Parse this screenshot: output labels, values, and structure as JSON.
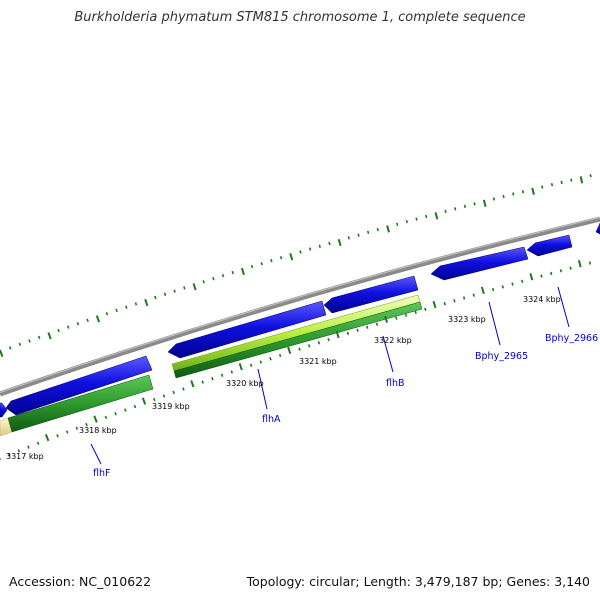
{
  "title": "Burkholderia phymatum STM815 chromosome 1, complete sequence",
  "footer": {
    "accession": "Accession: NC_010622",
    "topology": "Topology: circular; Length: 3,479,187 bp; Genes: 3,140"
  },
  "colors": {
    "background": "#ffffff",
    "backbone": "#8a8a8a",
    "cds_forward": "#1010e0",
    "gene_green": "#2e9a2e",
    "gene_lime": "#b8f040",
    "gene_khaki": "#efe5a4",
    "tick": "#1f7a1f",
    "gene_label": "#0000cc"
  },
  "map": {
    "kbp_labels": [
      "3317 kbp",
      "3318 kbp",
      "3319 kbp",
      "3320 kbp",
      "3321 kbp",
      "3322 kbp",
      "3323 kbp",
      "3324 kbp"
    ],
    "gene_labels": [
      "flhF",
      "flhA",
      "flhB",
      "Bphy_2965",
      "Bphy_2966"
    ]
  }
}
